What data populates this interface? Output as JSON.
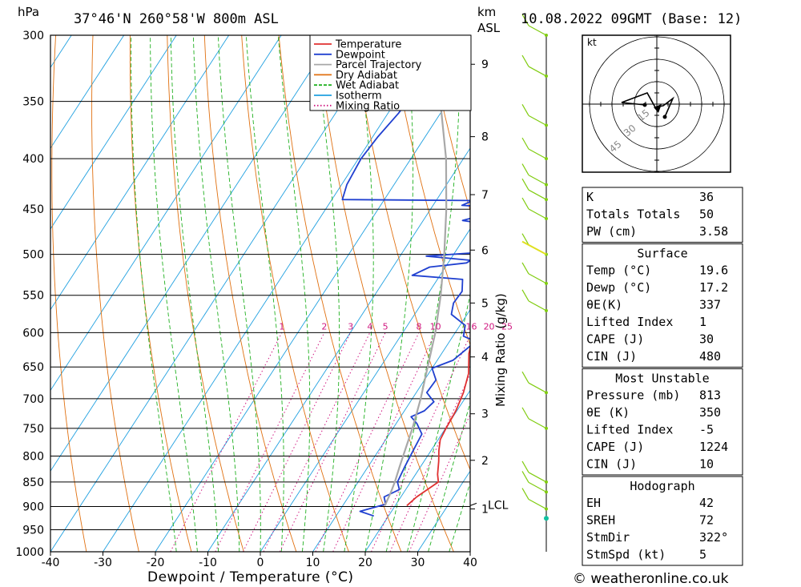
{
  "header": {
    "hpa_unit": "hPa",
    "location": "37°46'N  260°58'W  800m  ASL",
    "km_label_1": "km",
    "km_label_2": "ASL",
    "datetime": "10.08.2022  09GMT  (Base: 12)"
  },
  "footer": {
    "credit": "© weatheronline.co.uk"
  },
  "chart_data": {
    "type": "line",
    "subtype": "skew-T log-P diagram",
    "xlabel": "Dewpoint / Temperature (°C)",
    "ylabel": "hPa",
    "x_range": [
      -40,
      40
    ],
    "x_ticks": [
      "-40",
      "-30",
      "-20",
      "-10",
      "0",
      "10",
      "20",
      "30",
      "40"
    ],
    "y_range": [
      1000,
      300
    ],
    "y_ticks": [
      300,
      350,
      400,
      450,
      500,
      550,
      600,
      650,
      700,
      750,
      800,
      850,
      900,
      950,
      1000
    ],
    "y_scale": "log",
    "km_ticks": [
      {
        "label": "9",
        "p": 321
      },
      {
        "label": "8",
        "p": 380
      },
      {
        "label": "7",
        "p": 435
      },
      {
        "label": "6",
        "p": 495
      },
      {
        "label": "5",
        "p": 560
      },
      {
        "label": "4",
        "p": 635
      },
      {
        "label": "3",
        "p": 725
      },
      {
        "label": "2",
        "p": 808
      },
      {
        "label": "1",
        "p": 905
      }
    ],
    "lcl": {
      "label": "LCL",
      "p": 898
    },
    "mixing_ratio_axis_label": "Mixing Ratio (g/kg)",
    "mixing_ratio_labels": [
      "1",
      "2",
      "3",
      "4",
      "5",
      "8",
      "10",
      "16",
      "20",
      "25"
    ],
    "legend": {
      "placement": "top-center",
      "entries": [
        {
          "name": "Temperature",
          "color": "#e03030",
          "style": "solid"
        },
        {
          "name": "Dewpoint",
          "color": "#2040d0",
          "style": "solid"
        },
        {
          "name": "Parcel Trajectory",
          "color": "#a8a8a8",
          "style": "solid"
        },
        {
          "name": "Dry Adiabat",
          "color": "#e07010",
          "style": "solid"
        },
        {
          "name": "Wet Adiabat",
          "color": "#20b020",
          "style": "dashed"
        },
        {
          "name": "Isotherm",
          "color": "#20a0e0",
          "style": "solid"
        },
        {
          "name": "Mixing Ratio",
          "color": "#d01880",
          "style": "dotted"
        }
      ]
    },
    "series": [
      {
        "name": "Temperature",
        "color": "#e03030",
        "points": [
          [
            898,
            22.2
          ],
          [
            880,
            23.0
          ],
          [
            860,
            24.5
          ],
          [
            850,
            25.3
          ],
          [
            835,
            24.2
          ],
          [
            810,
            22.8
          ],
          [
            790,
            21.5
          ],
          [
            770,
            20.4
          ],
          [
            750,
            20.1
          ],
          [
            720,
            19.8
          ],
          [
            690,
            19.0
          ],
          [
            660,
            17.6
          ],
          [
            630,
            15.2
          ],
          [
            600,
            13.5
          ],
          [
            575,
            11.8
          ],
          [
            550,
            10.2
          ],
          [
            525,
            8.3
          ],
          [
            505,
            7.0
          ],
          [
            500,
            6.5
          ],
          [
            480,
            4.4
          ],
          [
            460,
            3.0
          ],
          [
            445,
            1.9
          ],
          [
            430,
            1.5
          ],
          [
            420,
            1.0
          ],
          [
            410,
            0.3
          ],
          [
            400,
            -1.1
          ],
          [
            385,
            -2.8
          ],
          [
            370,
            -4.7
          ],
          [
            360,
            -6.0
          ]
        ]
      },
      {
        "name": "Dewpoint",
        "color": "#2040d0",
        "points": [
          [
            920,
            17.2
          ],
          [
            910,
            14.0
          ],
          [
            895,
            18.0
          ],
          [
            880,
            16.8
          ],
          [
            865,
            18.8
          ],
          [
            850,
            17.5
          ],
          [
            820,
            17.0
          ],
          [
            790,
            16.6
          ],
          [
            760,
            16.2
          ],
          [
            742,
            14.0
          ],
          [
            730,
            12.0
          ],
          [
            720,
            13.8
          ],
          [
            705,
            14.5
          ],
          [
            690,
            12.0
          ],
          [
            670,
            12.2
          ],
          [
            652,
            10.0
          ],
          [
            640,
            13.0
          ],
          [
            615,
            14.8
          ],
          [
            610,
            14.0
          ],
          [
            605,
            12.0
          ],
          [
            590,
            11.0
          ],
          [
            575,
            7.0
          ],
          [
            560,
            6.0
          ],
          [
            545,
            6.2
          ],
          [
            530,
            4.8
          ],
          [
            525,
            -5.3
          ],
          [
            515,
            -3.0
          ],
          [
            510,
            3.5
          ],
          [
            507,
            4.0
          ],
          [
            502,
            -5.0
          ],
          [
            498,
            4.0
          ],
          [
            494,
            9.0
          ],
          [
            488,
            11.0
          ],
          [
            478,
            10.2
          ],
          [
            470,
            7.5
          ],
          [
            462,
            -2.5
          ],
          [
            454,
            2.0
          ],
          [
            448,
            1.5
          ],
          [
            446,
            -4.5
          ],
          [
            441,
            -3.0
          ],
          [
            440,
            -28.0
          ],
          [
            425,
            -29.0
          ],
          [
            400,
            -29.5
          ],
          [
            380,
            -29.0
          ],
          [
            360,
            -28.0
          ],
          [
            340,
            -27.5
          ],
          [
            320,
            -27.0
          ],
          [
            300,
            -27.0
          ]
        ]
      },
      {
        "name": "Parcel Trajectory",
        "color": "#a8a8a8",
        "points": [
          [
            898,
            18.0
          ],
          [
            870,
            17.5
          ],
          [
            850,
            17.0
          ],
          [
            820,
            16.0
          ],
          [
            780,
            14.7
          ],
          [
            750,
            13.7
          ],
          [
            700,
            11.6
          ],
          [
            650,
            9.0
          ],
          [
            600,
            6.2
          ],
          [
            550,
            2.6
          ],
          [
            500,
            -1.8
          ],
          [
            450,
            -7.0
          ],
          [
            400,
            -13.3
          ],
          [
            350,
            -21.5
          ],
          [
            300,
            -30.5
          ]
        ]
      }
    ],
    "wind_profile_color": "#80cc10"
  },
  "hodograph": {
    "unit": "kt",
    "ring_labels": [
      "15",
      "30",
      "45"
    ]
  },
  "indices": {
    "block1": [
      {
        "label": "K",
        "value": "36"
      },
      {
        "label": "Totals Totals",
        "value": "50"
      },
      {
        "label": "PW (cm)",
        "value": "3.58"
      }
    ],
    "surface": {
      "title": "Surface",
      "rows": [
        {
          "label": "Temp (°C)",
          "value": "19.6"
        },
        {
          "label": "Dewp (°C)",
          "value": "17.2"
        },
        {
          "label": "θE(K)",
          "value": "337"
        },
        {
          "label": "Lifted Index",
          "value": "1"
        },
        {
          "label": "CAPE (J)",
          "value": "30"
        },
        {
          "label": "CIN (J)",
          "value": "480"
        }
      ]
    },
    "most_unstable": {
      "title": "Most Unstable",
      "rows": [
        {
          "label": "Pressure (mb)",
          "value": "813"
        },
        {
          "label": "θE (K)",
          "value": "350"
        },
        {
          "label": "Lifted Index",
          "value": "-5"
        },
        {
          "label": "CAPE (J)",
          "value": "1224"
        },
        {
          "label": "CIN (J)",
          "value": "10"
        }
      ]
    },
    "hodograph_block": {
      "title": "Hodograph",
      "rows": [
        {
          "label": "EH",
          "value": "42"
        },
        {
          "label": "SREH",
          "value": "72"
        },
        {
          "label": "StmDir",
          "value": "322°"
        },
        {
          "label": "StmSpd (kt)",
          "value": "5"
        }
      ]
    }
  }
}
